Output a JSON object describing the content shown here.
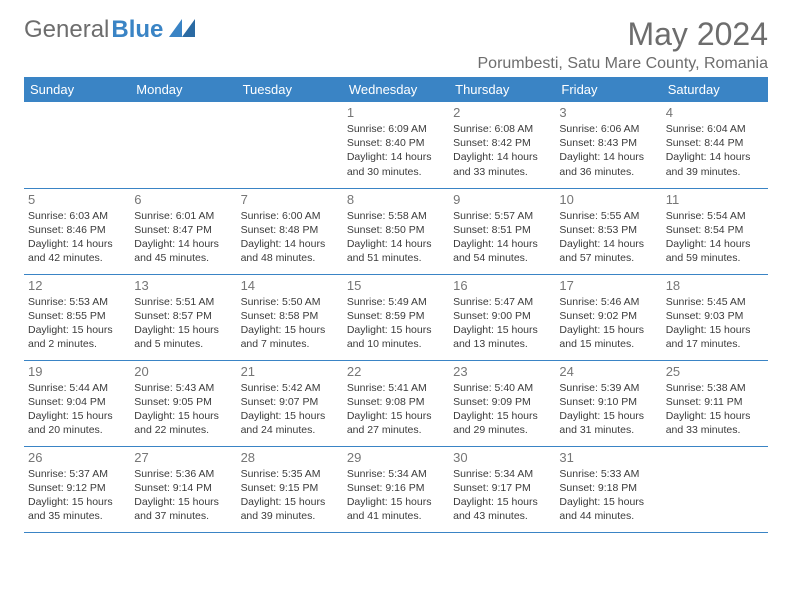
{
  "logo": {
    "text1": "General",
    "text2": "Blue"
  },
  "title": "May 2024",
  "location": "Porumbesti, Satu Mare County, Romania",
  "colors": {
    "header_bg": "#3a84c5",
    "header_text": "#ffffff",
    "border": "#3a84c5",
    "daynum": "#767676",
    "details": "#3b3b3b",
    "title": "#6d6d6d"
  },
  "weekdays": [
    "Sunday",
    "Monday",
    "Tuesday",
    "Wednesday",
    "Thursday",
    "Friday",
    "Saturday"
  ],
  "weeks": [
    [
      null,
      null,
      null,
      {
        "d": "1",
        "sr": "6:09 AM",
        "ss": "8:40 PM",
        "dl": "14 hours and 30 minutes."
      },
      {
        "d": "2",
        "sr": "6:08 AM",
        "ss": "8:42 PM",
        "dl": "14 hours and 33 minutes."
      },
      {
        "d": "3",
        "sr": "6:06 AM",
        "ss": "8:43 PM",
        "dl": "14 hours and 36 minutes."
      },
      {
        "d": "4",
        "sr": "6:04 AM",
        "ss": "8:44 PM",
        "dl": "14 hours and 39 minutes."
      }
    ],
    [
      {
        "d": "5",
        "sr": "6:03 AM",
        "ss": "8:46 PM",
        "dl": "14 hours and 42 minutes."
      },
      {
        "d": "6",
        "sr": "6:01 AM",
        "ss": "8:47 PM",
        "dl": "14 hours and 45 minutes."
      },
      {
        "d": "7",
        "sr": "6:00 AM",
        "ss": "8:48 PM",
        "dl": "14 hours and 48 minutes."
      },
      {
        "d": "8",
        "sr": "5:58 AM",
        "ss": "8:50 PM",
        "dl": "14 hours and 51 minutes."
      },
      {
        "d": "9",
        "sr": "5:57 AM",
        "ss": "8:51 PM",
        "dl": "14 hours and 54 minutes."
      },
      {
        "d": "10",
        "sr": "5:55 AM",
        "ss": "8:53 PM",
        "dl": "14 hours and 57 minutes."
      },
      {
        "d": "11",
        "sr": "5:54 AM",
        "ss": "8:54 PM",
        "dl": "14 hours and 59 minutes."
      }
    ],
    [
      {
        "d": "12",
        "sr": "5:53 AM",
        "ss": "8:55 PM",
        "dl": "15 hours and 2 minutes."
      },
      {
        "d": "13",
        "sr": "5:51 AM",
        "ss": "8:57 PM",
        "dl": "15 hours and 5 minutes."
      },
      {
        "d": "14",
        "sr": "5:50 AM",
        "ss": "8:58 PM",
        "dl": "15 hours and 7 minutes."
      },
      {
        "d": "15",
        "sr": "5:49 AM",
        "ss": "8:59 PM",
        "dl": "15 hours and 10 minutes."
      },
      {
        "d": "16",
        "sr": "5:47 AM",
        "ss": "9:00 PM",
        "dl": "15 hours and 13 minutes."
      },
      {
        "d": "17",
        "sr": "5:46 AM",
        "ss": "9:02 PM",
        "dl": "15 hours and 15 minutes."
      },
      {
        "d": "18",
        "sr": "5:45 AM",
        "ss": "9:03 PM",
        "dl": "15 hours and 17 minutes."
      }
    ],
    [
      {
        "d": "19",
        "sr": "5:44 AM",
        "ss": "9:04 PM",
        "dl": "15 hours and 20 minutes."
      },
      {
        "d": "20",
        "sr": "5:43 AM",
        "ss": "9:05 PM",
        "dl": "15 hours and 22 minutes."
      },
      {
        "d": "21",
        "sr": "5:42 AM",
        "ss": "9:07 PM",
        "dl": "15 hours and 24 minutes."
      },
      {
        "d": "22",
        "sr": "5:41 AM",
        "ss": "9:08 PM",
        "dl": "15 hours and 27 minutes."
      },
      {
        "d": "23",
        "sr": "5:40 AM",
        "ss": "9:09 PM",
        "dl": "15 hours and 29 minutes."
      },
      {
        "d": "24",
        "sr": "5:39 AM",
        "ss": "9:10 PM",
        "dl": "15 hours and 31 minutes."
      },
      {
        "d": "25",
        "sr": "5:38 AM",
        "ss": "9:11 PM",
        "dl": "15 hours and 33 minutes."
      }
    ],
    [
      {
        "d": "26",
        "sr": "5:37 AM",
        "ss": "9:12 PM",
        "dl": "15 hours and 35 minutes."
      },
      {
        "d": "27",
        "sr": "5:36 AM",
        "ss": "9:14 PM",
        "dl": "15 hours and 37 minutes."
      },
      {
        "d": "28",
        "sr": "5:35 AM",
        "ss": "9:15 PM",
        "dl": "15 hours and 39 minutes."
      },
      {
        "d": "29",
        "sr": "5:34 AM",
        "ss": "9:16 PM",
        "dl": "15 hours and 41 minutes."
      },
      {
        "d": "30",
        "sr": "5:34 AM",
        "ss": "9:17 PM",
        "dl": "15 hours and 43 minutes."
      },
      {
        "d": "31",
        "sr": "5:33 AM",
        "ss": "9:18 PM",
        "dl": "15 hours and 44 minutes."
      },
      null
    ]
  ],
  "labels": {
    "sunrise": "Sunrise: ",
    "sunset": "Sunset: ",
    "daylight": "Daylight: "
  }
}
